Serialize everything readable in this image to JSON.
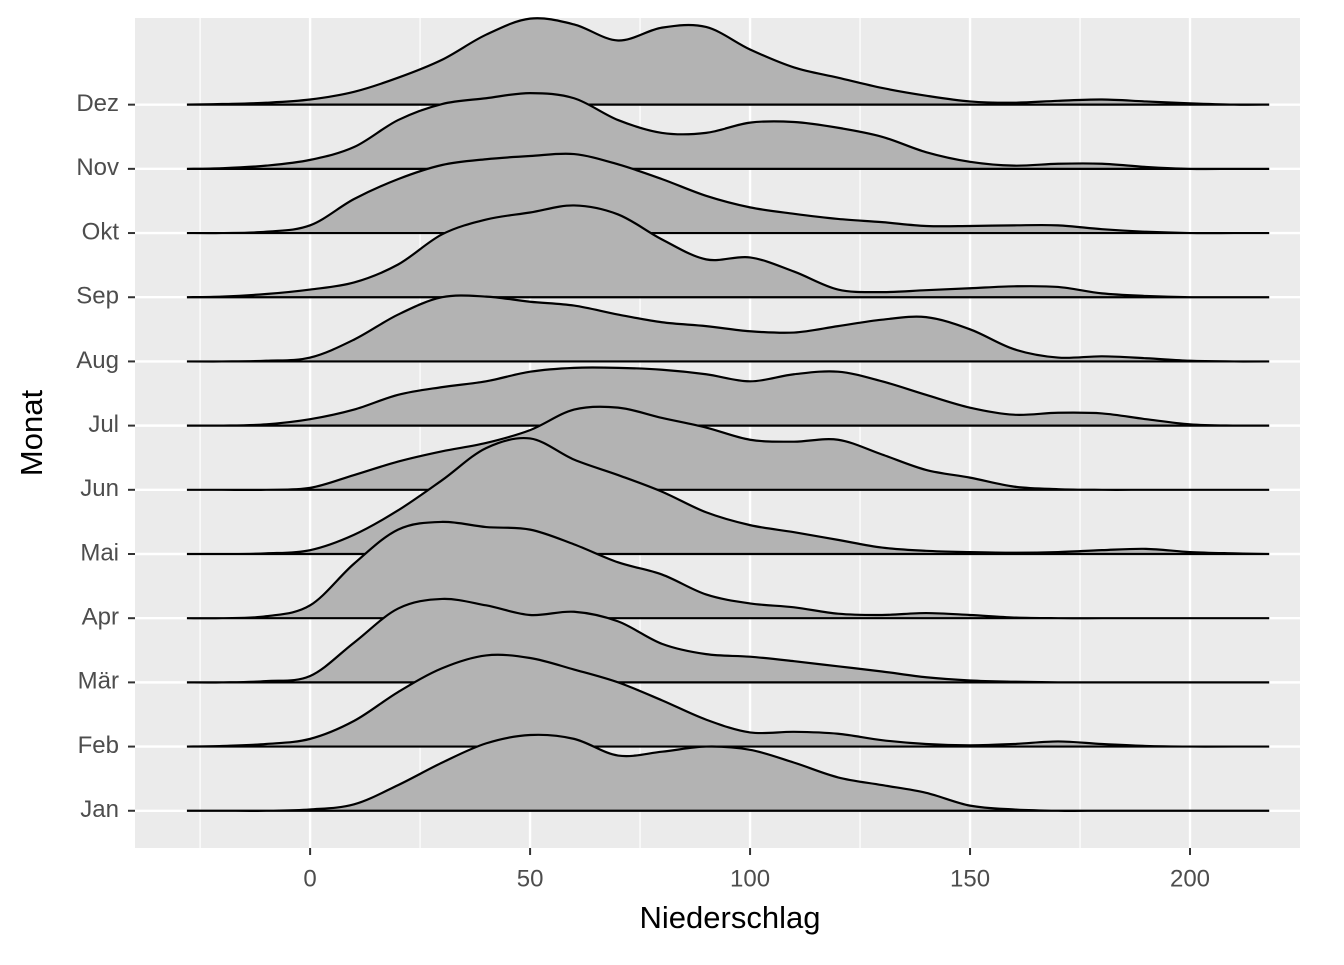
{
  "chart_data": {
    "type": "ridgeline",
    "x_label": "Niederschlag",
    "y_label": "Monat",
    "color": "#b3b3b3",
    "xlim": [
      -39.8,
      225
    ],
    "xticks": [
      0,
      50,
      100,
      150,
      200
    ],
    "x": [
      -28,
      -20,
      -10,
      0,
      10,
      20,
      30,
      40,
      50,
      60,
      70,
      80,
      90,
      100,
      110,
      120,
      130,
      140,
      150,
      160,
      170,
      180,
      190,
      200,
      210,
      218
    ],
    "series": [
      {
        "name": "Jan",
        "values": [
          0,
          0,
          0,
          0.02,
          0.1,
          0.4,
          0.75,
          1.05,
          1.18,
          1.12,
          0.86,
          0.92,
          1.0,
          0.95,
          0.75,
          0.52,
          0.4,
          0.28,
          0.08,
          0.02,
          0,
          0,
          0,
          0,
          0,
          0
        ]
      },
      {
        "name": "Feb",
        "values": [
          0,
          0.01,
          0.04,
          0.12,
          0.4,
          0.85,
          1.22,
          1.42,
          1.38,
          1.2,
          1.0,
          0.72,
          0.42,
          0.22,
          0.23,
          0.2,
          0.1,
          0.04,
          0.02,
          0.04,
          0.08,
          0.04,
          0.01,
          0,
          0,
          0
        ]
      },
      {
        "name": "Mär",
        "values": [
          0,
          0,
          0.02,
          0.1,
          0.62,
          1.15,
          1.3,
          1.2,
          1.05,
          1.1,
          0.95,
          0.6,
          0.44,
          0.4,
          0.33,
          0.25,
          0.17,
          0.08,
          0.03,
          0.01,
          0,
          0,
          0,
          0,
          0,
          0
        ]
      },
      {
        "name": "Apr",
        "values": [
          0,
          0,
          0.03,
          0.2,
          0.85,
          1.38,
          1.5,
          1.42,
          1.38,
          1.15,
          0.87,
          0.68,
          0.37,
          0.23,
          0.17,
          0.07,
          0.05,
          0.08,
          0.05,
          0.01,
          0,
          0,
          0,
          0,
          0,
          0
        ]
      },
      {
        "name": "Mai",
        "values": [
          0,
          0,
          0.01,
          0.06,
          0.3,
          0.68,
          1.15,
          1.65,
          1.8,
          1.47,
          1.23,
          0.97,
          0.65,
          0.45,
          0.34,
          0.22,
          0.1,
          0.05,
          0.03,
          0.02,
          0.03,
          0.06,
          0.08,
          0.03,
          0.01,
          0
        ]
      },
      {
        "name": "Jun",
        "values": [
          0,
          0,
          0,
          0.03,
          0.23,
          0.44,
          0.6,
          0.73,
          0.93,
          1.25,
          1.28,
          1.12,
          0.97,
          0.78,
          0.75,
          0.78,
          0.55,
          0.31,
          0.19,
          0.05,
          0.01,
          0,
          0,
          0,
          0,
          0
        ]
      },
      {
        "name": "Jul",
        "values": [
          0,
          0,
          0.02,
          0.1,
          0.25,
          0.48,
          0.6,
          0.69,
          0.84,
          0.9,
          0.9,
          0.87,
          0.8,
          0.69,
          0.8,
          0.84,
          0.69,
          0.48,
          0.28,
          0.17,
          0.2,
          0.19,
          0.1,
          0.02,
          0,
          0
        ]
      },
      {
        "name": "Aug",
        "values": [
          0,
          0,
          0.01,
          0.06,
          0.34,
          0.73,
          1.0,
          1.01,
          0.93,
          0.87,
          0.73,
          0.61,
          0.55,
          0.47,
          0.45,
          0.55,
          0.65,
          0.69,
          0.5,
          0.19,
          0.06,
          0.08,
          0.05,
          0.01,
          0,
          0
        ]
      },
      {
        "name": "Sep",
        "values": [
          0,
          0.01,
          0.05,
          0.12,
          0.23,
          0.51,
          0.98,
          1.21,
          1.32,
          1.43,
          1.29,
          0.9,
          0.59,
          0.62,
          0.4,
          0.12,
          0.08,
          0.11,
          0.14,
          0.17,
          0.16,
          0.06,
          0.02,
          0,
          0,
          0
        ]
      },
      {
        "name": "Okt",
        "values": [
          0,
          0,
          0.02,
          0.12,
          0.53,
          0.84,
          1.06,
          1.15,
          1.2,
          1.23,
          1.07,
          0.84,
          0.58,
          0.4,
          0.3,
          0.22,
          0.17,
          0.11,
          0.11,
          0.12,
          0.12,
          0.06,
          0.02,
          0,
          0,
          0
        ]
      },
      {
        "name": "Nov",
        "values": [
          0,
          0.01,
          0.05,
          0.14,
          0.34,
          0.76,
          1.01,
          1.1,
          1.18,
          1.1,
          0.76,
          0.56,
          0.56,
          0.72,
          0.73,
          0.64,
          0.5,
          0.26,
          0.11,
          0.05,
          0.08,
          0.08,
          0.03,
          0,
          0,
          0
        ]
      },
      {
        "name": "Dez",
        "values": [
          0,
          0.01,
          0.03,
          0.08,
          0.2,
          0.42,
          0.7,
          1.09,
          1.34,
          1.25,
          1.0,
          1.2,
          1.21,
          0.86,
          0.58,
          0.42,
          0.26,
          0.14,
          0.05,
          0.03,
          0.06,
          0.08,
          0.05,
          0.02,
          0,
          0
        ]
      }
    ]
  }
}
